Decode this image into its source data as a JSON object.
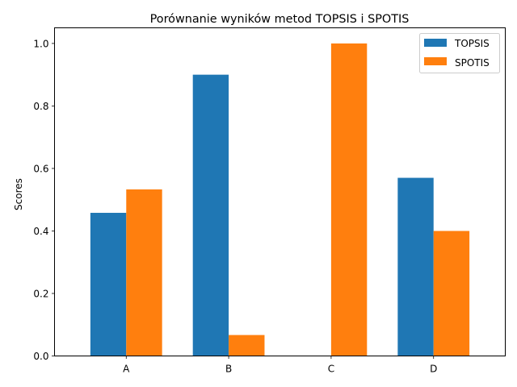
{
  "chart_data": {
    "type": "bar",
    "title": "Porównanie wyników metod TOPSIS i SPOTIS",
    "xlabel": "",
    "ylabel": "Scores",
    "categories": [
      "A",
      "B",
      "C",
      "D"
    ],
    "ylim": [
      0,
      1.05
    ],
    "yticks": [
      0.0,
      0.2,
      0.4,
      0.6,
      0.8,
      1.0
    ],
    "ytick_labels": [
      "0.0",
      "0.2",
      "0.4",
      "0.6",
      "0.8",
      "1.0"
    ],
    "grid": false,
    "legend_position": "top-right",
    "series": [
      {
        "name": "TOPSIS",
        "color": "#1f77b4",
        "values": [
          0.458,
          0.9,
          0.0,
          0.57
        ]
      },
      {
        "name": "SPOTIS",
        "color": "#ff7f0e",
        "values": [
          0.533,
          0.067,
          1.0,
          0.4
        ]
      }
    ]
  }
}
